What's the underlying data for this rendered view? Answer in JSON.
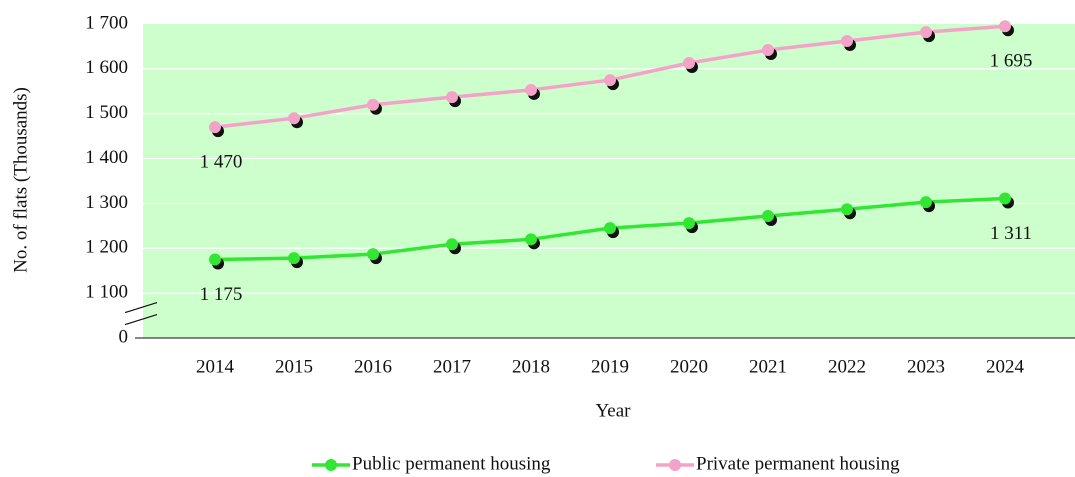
{
  "chart_data": {
    "type": "line",
    "y_label": "No. of flats (Thousands)",
    "x_label": "Year",
    "categories": [
      "2014",
      "2015",
      "2016",
      "2017",
      "2018",
      "2019",
      "2020",
      "2021",
      "2022",
      "2023",
      "2024"
    ],
    "series": [
      {
        "name": "Public permanent housing",
        "color": "#33e633",
        "values": [
          1175,
          1178,
          1187,
          1209,
          1220,
          1245,
          1256,
          1272,
          1287,
          1303,
          1311
        ],
        "value_labels": [
          "1 175",
          null,
          null,
          null,
          null,
          null,
          null,
          null,
          null,
          null,
          "1 311"
        ]
      },
      {
        "name": "Private permanent housing",
        "color": "#f4a3c8",
        "values": [
          1470,
          1490,
          1520,
          1537,
          1553,
          1575,
          1613,
          1642,
          1662,
          1682,
          1695
        ],
        "value_labels": [
          "1 470",
          null,
          null,
          null,
          null,
          null,
          null,
          null,
          null,
          null,
          "1 695"
        ]
      }
    ],
    "ylim": [
      0,
      1700
    ],
    "yticks": [
      0,
      {
        "value": 1100,
        "label": "1 100"
      },
      {
        "value": 1200,
        "label": "1 200"
      },
      {
        "value": 1300,
        "label": "1 300"
      },
      {
        "value": 1400,
        "label": "1 400"
      },
      {
        "value": 1500,
        "label": "1 500"
      },
      {
        "value": 1600,
        "label": "1 600"
      },
      {
        "value": 1700,
        "label": "1 700"
      }
    ],
    "broken_axis": true,
    "grid": true,
    "background": "#ccffcc",
    "legend": "bottom"
  }
}
